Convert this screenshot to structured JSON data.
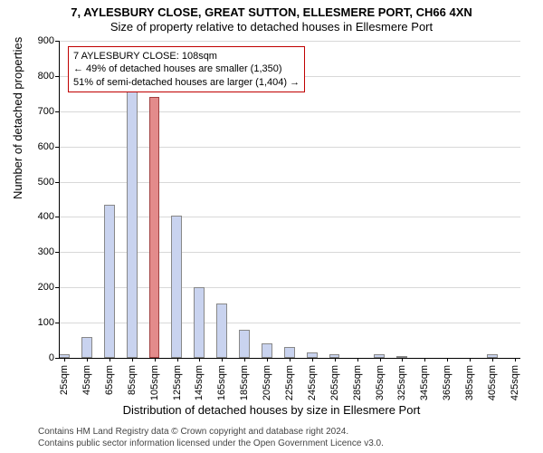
{
  "title": "7, AYLESBURY CLOSE, GREAT SUTTON, ELLESMERE PORT, CH66 4XN",
  "subtitle": "Size of property relative to detached houses in Ellesmere Port",
  "ylabel": "Number of detached properties",
  "xlabel": "Distribution of detached houses by size in Ellesmere Port",
  "chart": {
    "type": "histogram",
    "ylim": [
      0,
      900
    ],
    "yticks": [
      0,
      100,
      200,
      300,
      400,
      500,
      600,
      700,
      800,
      900
    ],
    "xticks": [
      "25sqm",
      "45sqm",
      "65sqm",
      "85sqm",
      "105sqm",
      "125sqm",
      "145sqm",
      "165sqm",
      "185sqm",
      "205sqm",
      "225sqm",
      "245sqm",
      "265sqm",
      "285sqm",
      "305sqm",
      "325sqm",
      "345sqm",
      "365sqm",
      "385sqm",
      "405sqm",
      "425sqm"
    ],
    "bar_color": "#c9d3ef",
    "bar_border": "#888888",
    "highlight_color": "#e38b8b",
    "highlight_border": "#a04040",
    "grid_color": "#d8d8d8",
    "background_color": "#ffffff",
    "values": [
      10,
      0,
      60,
      0,
      435,
      0,
      790,
      0,
      740,
      0,
      405,
      0,
      200,
      0,
      155,
      0,
      80,
      0,
      40,
      0,
      30,
      0,
      15,
      0,
      10,
      0,
      0,
      0,
      10,
      0,
      5,
      0,
      0,
      0,
      0,
      0,
      0,
      0,
      10,
      0,
      0
    ],
    "highlight_index": 8,
    "bar_count": 41
  },
  "annotation": {
    "line1": "7 AYLESBURY CLOSE: 108sqm",
    "line2": "← 49% of detached houses are smaller (1,350)",
    "line3": "51% of semi-detached houses are larger (1,404) →",
    "border_color": "#c00000"
  },
  "footer": {
    "line1": "Contains HM Land Registry data © Crown copyright and database right 2024.",
    "line2": "Contains public sector information licensed under the Open Government Licence v3.0."
  }
}
